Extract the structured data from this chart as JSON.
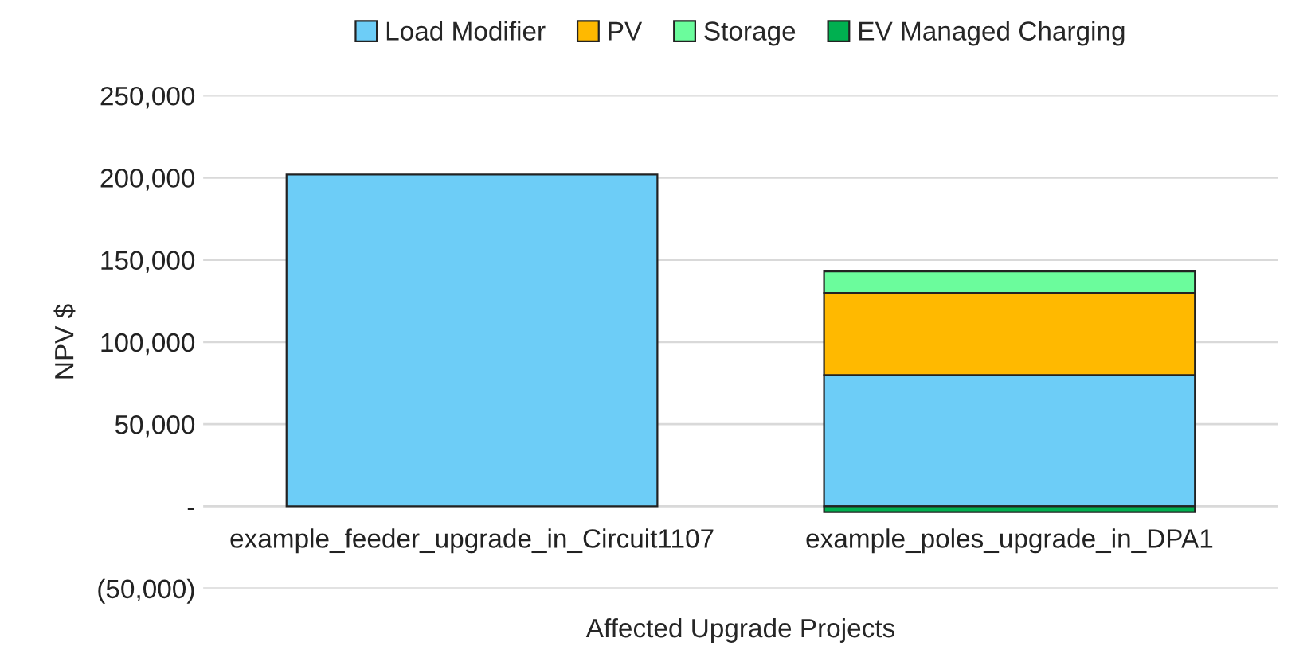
{
  "chart_data": {
    "type": "bar",
    "stacked": true,
    "xlabel": "Affected Upgrade Projects",
    "ylabel": "NPV $",
    "categories": [
      "example_feeder_upgrade_in_Circuit1107",
      "example_poles_upgrade_in_DPA1"
    ],
    "series": [
      {
        "name": "Load Modifier",
        "color": "#6dcdf7",
        "values": [
          202000,
          80000
        ]
      },
      {
        "name": "PV",
        "color": "#ffb900",
        "values": [
          null,
          50000
        ]
      },
      {
        "name": "Storage",
        "color": "#6bfc9c",
        "values": [
          null,
          13000
        ]
      },
      {
        "name": "EV Managed Charging",
        "color": "#00b050",
        "values": [
          null,
          -3500
        ]
      }
    ],
    "ylim": [
      -50000,
      250000
    ],
    "yticks": [
      {
        "value": -50000,
        "label": "(50,000)"
      },
      {
        "value": 0,
        "label": "-"
      },
      {
        "value": 50000,
        "label": "50,000"
      },
      {
        "value": 100000,
        "label": "100,000"
      },
      {
        "value": 150000,
        "label": "150,000"
      },
      {
        "value": 200000,
        "label": "200,000"
      },
      {
        "value": 250000,
        "label": "250,000"
      }
    ],
    "grid": "y",
    "legend": "top"
  }
}
